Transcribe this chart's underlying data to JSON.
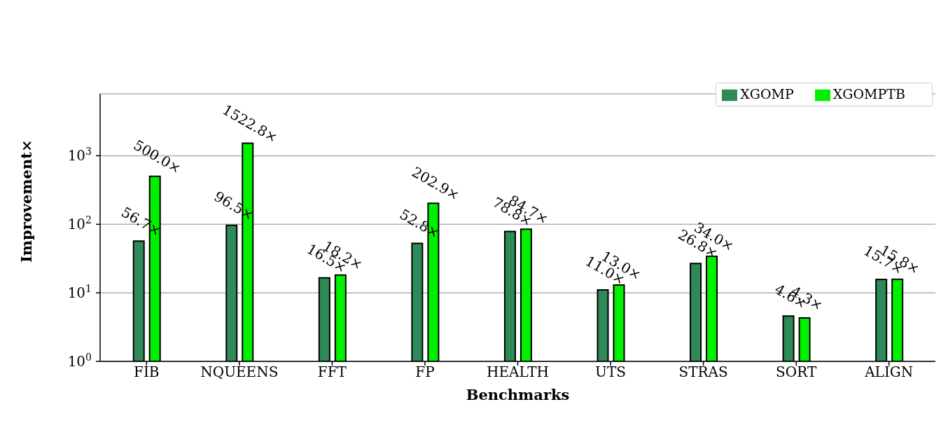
{
  "chart_data": {
    "type": "bar",
    "xlabel": "Benchmarks",
    "ylabel": "Improvement×",
    "categories": [
      "FIB",
      "NQUEENS",
      "FFT",
      "FP",
      "HEALTH",
      "UTS",
      "STRAS",
      "SORT",
      "ALIGN"
    ],
    "series": [
      {
        "name": "XGOMP",
        "color": "#2e8b57",
        "values": [
          56.7,
          96.5,
          16.5,
          52.8,
          78.8,
          11.0,
          26.8,
          4.6,
          15.7
        ],
        "value_labels": [
          "56.7×",
          "96.5×",
          "16.5×",
          "52.8×",
          "78.8×",
          "11.0×",
          "26.8×",
          "4.6×",
          "15.7×"
        ]
      },
      {
        "name": "XGOMPTB",
        "color": "#00f000",
        "values": [
          500.0,
          1522.8,
          18.2,
          202.9,
          84.7,
          13.0,
          34.0,
          4.3,
          15.8
        ],
        "value_labels": [
          "500.0×",
          "1522.8×",
          "18.2×",
          "202.9×",
          "84.7×",
          "13.0×",
          "34.0×",
          "4.3×",
          "15.8×"
        ]
      }
    ],
    "log": "y",
    "ylim": [
      1,
      8000
    ],
    "yticks": [
      {
        "value": 1,
        "label": "10$^{0}$"
      },
      {
        "value": 10,
        "label": "10$^{1}$"
      },
      {
        "value": 100,
        "label": "10$^{2}$"
      },
      {
        "value": 1000,
        "label": "10$^{3}$"
      }
    ],
    "grid": "y",
    "legend": "top right"
  }
}
